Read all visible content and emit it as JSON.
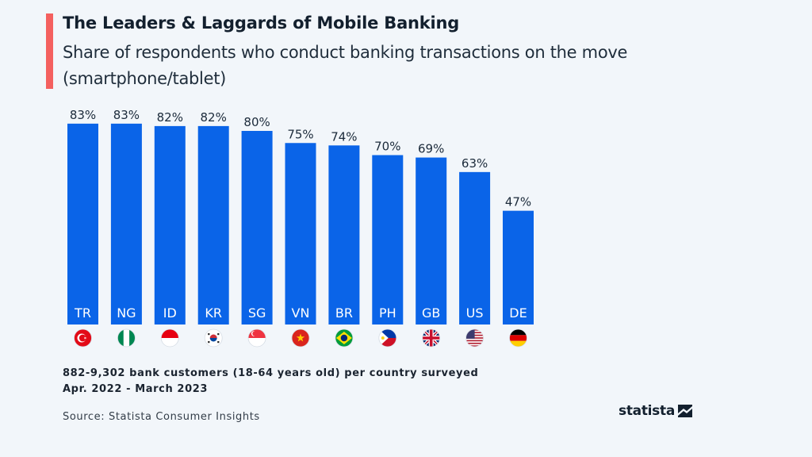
{
  "header": {
    "title": "The Leaders & Laggards of Mobile Banking",
    "subtitle": "Share of respondents who conduct banking transactions on the move (smartphone/tablet)"
  },
  "footer": {
    "note_line1": "882-9,302 bank customers (18-64 years old) per country surveyed",
    "note_line2": "Apr. 2022 - March 2023",
    "source": "Source: Statista Consumer Insights",
    "logo_text": "statista"
  },
  "colors": {
    "bar": "#0a64e8",
    "accent": "#f4605f",
    "background": "#f2f6fa",
    "label": "#1b2a3a"
  },
  "chart_data": {
    "type": "bar",
    "title": "The Leaders & Laggards of Mobile Banking",
    "subtitle": "Share of respondents who conduct banking transactions on the move (smartphone/tablet)",
    "xlabel": "",
    "ylabel": "",
    "ylim": [
      0,
      100
    ],
    "unit": "%",
    "grid": false,
    "categories": [
      "TR",
      "NG",
      "ID",
      "KR",
      "SG",
      "VN",
      "BR",
      "PH",
      "GB",
      "US",
      "DE"
    ],
    "values": [
      83,
      83,
      82,
      82,
      80,
      75,
      74,
      70,
      69,
      63,
      47
    ],
    "value_labels": [
      "83%",
      "83%",
      "82%",
      "82%",
      "80%",
      "75%",
      "74%",
      "70%",
      "69%",
      "63%",
      "47%"
    ],
    "flags": [
      "turkey-flag",
      "nigeria-flag",
      "indonesia-flag",
      "south-korea-flag",
      "singapore-flag",
      "vietnam-flag",
      "brazil-flag",
      "philippines-flag",
      "united-kingdom-flag",
      "united-states-flag",
      "germany-flag"
    ]
  }
}
